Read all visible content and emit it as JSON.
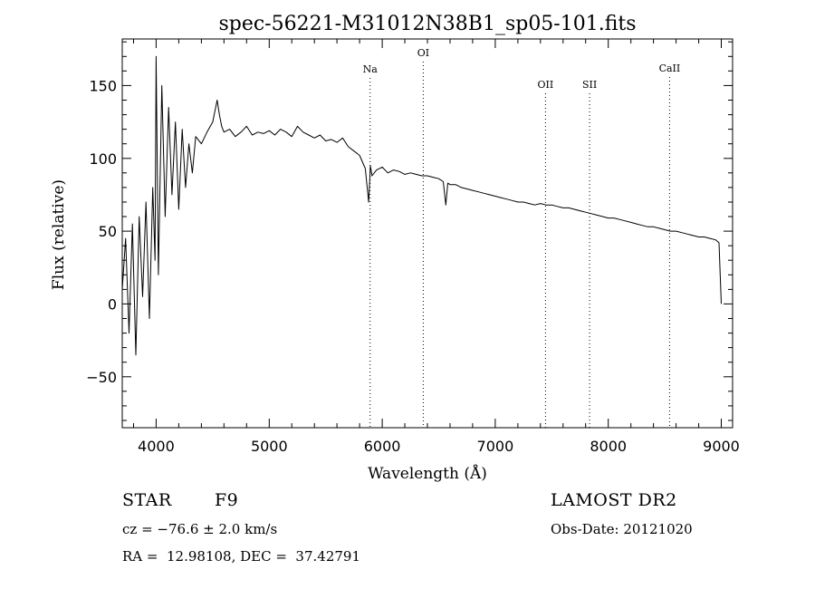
{
  "chart_data": {
    "type": "line",
    "title": "spec-56221-M31012N38B1_sp05-101.fits",
    "xlabel": "Wavelength (Å)",
    "ylabel": "Flux (relative)",
    "xlim": [
      3700,
      9100
    ],
    "ylim": [
      -85,
      182
    ],
    "xticks": [
      4000,
      5000,
      6000,
      7000,
      8000,
      9000
    ],
    "yticks": [
      -50,
      0,
      50,
      100,
      150
    ],
    "grid": false,
    "spectral_lines": [
      {
        "name": "Na",
        "wavelength": 5893
      },
      {
        "name": "OI",
        "wavelength": 6363
      },
      {
        "name": "OII",
        "wavelength": 7445
      },
      {
        "name": "SII",
        "wavelength": 7835
      },
      {
        "name": "CaII",
        "wavelength": 8542
      }
    ],
    "series": [
      {
        "x": [
          3700,
          3730,
          3760,
          3790,
          3820,
          3850,
          3880,
          3910,
          3940,
          3970,
          3990,
          4000,
          4020,
          4050,
          4080,
          4110,
          4140,
          4170,
          4200,
          4230,
          4260,
          4290,
          4320,
          4350,
          4400,
          4450,
          4500,
          4540,
          4560,
          4580,
          4600,
          4650,
          4700,
          4750,
          4800,
          4850,
          4900,
          4950,
          5000,
          5050,
          5100,
          5150,
          5200,
          5250,
          5300,
          5350,
          5400,
          5450,
          5500,
          5550,
          5600,
          5650,
          5700,
          5750,
          5800,
          5850,
          5880,
          5890,
          5895,
          5910,
          5950,
          6000,
          6050,
          6100,
          6150,
          6200,
          6250,
          6300,
          6350,
          6400,
          6450,
          6500,
          6540,
          6563,
          6580,
          6600,
          6650,
          6700,
          6750,
          6800,
          6850,
          6900,
          6950,
          7000,
          7050,
          7100,
          7150,
          7200,
          7250,
          7300,
          7350,
          7400,
          7450,
          7500,
          7550,
          7600,
          7650,
          7700,
          7750,
          7800,
          7850,
          7900,
          7950,
          8000,
          8050,
          8100,
          8150,
          8200,
          8250,
          8300,
          8350,
          8400,
          8450,
          8500,
          8550,
          8600,
          8650,
          8700,
          8750,
          8800,
          8850,
          8900,
          8950,
          8980,
          8990,
          9000
        ],
        "y": [
          10,
          45,
          -20,
          55,
          -35,
          60,
          5,
          70,
          -10,
          80,
          30,
          170,
          20,
          150,
          60,
          135,
          75,
          125,
          65,
          120,
          80,
          110,
          90,
          115,
          110,
          118,
          125,
          140,
          130,
          122,
          118,
          120,
          115,
          118,
          122,
          116,
          118,
          117,
          119,
          116,
          120,
          118,
          115,
          122,
          118,
          116,
          114,
          116,
          112,
          113,
          111,
          114,
          108,
          105,
          102,
          93,
          70,
          85,
          95,
          88,
          92,
          94,
          90,
          92,
          91,
          89,
          90,
          89,
          88,
          88,
          87,
          86,
          84,
          68,
          83,
          82,
          82,
          80,
          79,
          78,
          77,
          76,
          75,
          74,
          73,
          72,
          71,
          70,
          70,
          69,
          68,
          69,
          68,
          68,
          67,
          66,
          66,
          65,
          64,
          63,
          62,
          61,
          60,
          59,
          59,
          58,
          57,
          56,
          55,
          54,
          53,
          53,
          52,
          51,
          50,
          50,
          49,
          48,
          47,
          46,
          46,
          45,
          44,
          42,
          20,
          0
        ]
      }
    ]
  },
  "info": {
    "class_label": "STAR",
    "subclass": "F9",
    "survey": "LAMOST DR2",
    "cz": "cz = −76.6 ± 2.0 km/s",
    "obs_date": "Obs-Date: 20121020",
    "coords": "RA =  12.98108, DEC =  37.42791"
  }
}
